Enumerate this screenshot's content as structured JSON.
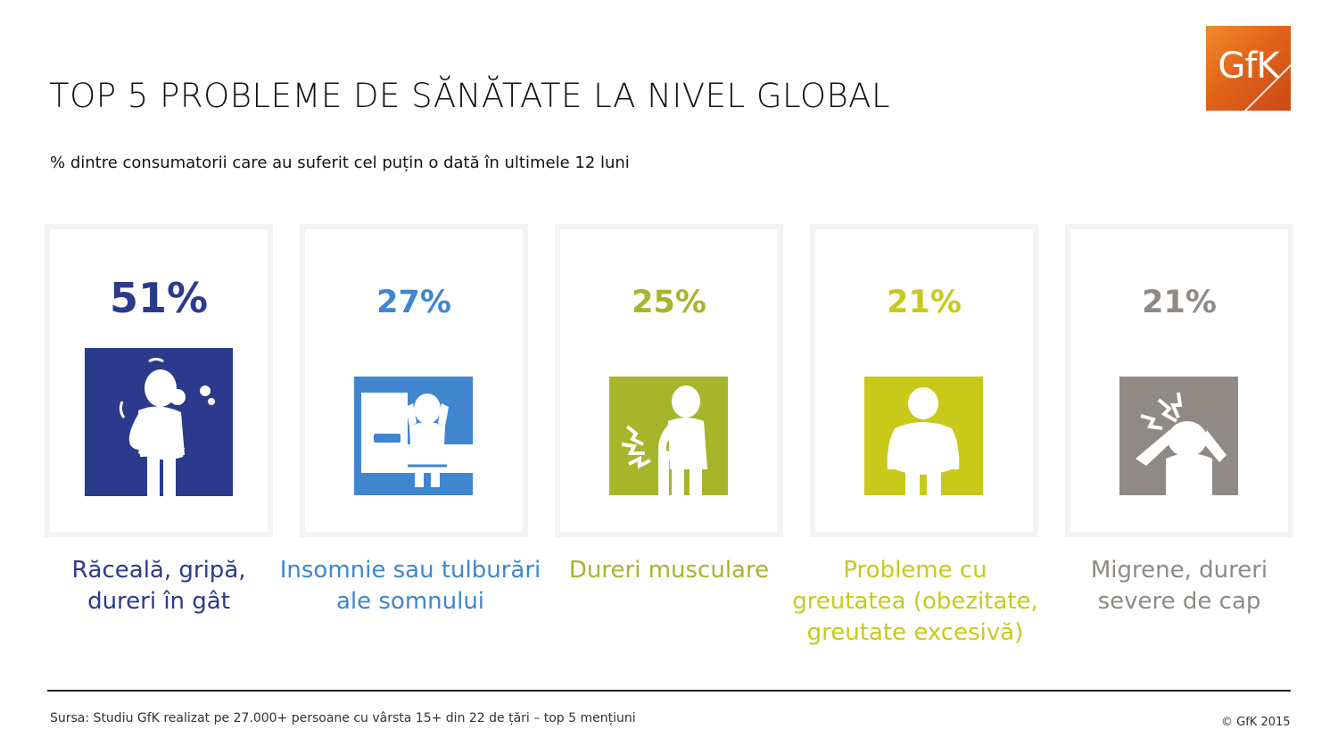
{
  "header": {
    "title": "TOP 5 PROBLEME DE SĂNĂTATE LA NIVEL GLOBAL",
    "subtitle": "% dintre consumatorii care au suferit cel puțin o dată în ultimele 12 luni",
    "logo_text": "GfK"
  },
  "items": [
    {
      "percent": "51%",
      "value": 51,
      "label_lines": [
        "Răceală, gripă,",
        "dureri în gât"
      ],
      "color": "#2b3a8c",
      "icon": "sneezing-person-icon"
    },
    {
      "percent": "27%",
      "value": 27,
      "label_lines": [
        "Insomnie sau tulburări",
        "ale somnului"
      ],
      "color": "#3f86cf",
      "icon": "sleepless-person-icon"
    },
    {
      "percent": "25%",
      "value": 25,
      "label_lines": [
        "Dureri musculare",
        ""
      ],
      "color": "#a7b52a",
      "icon": "muscle-pain-icon"
    },
    {
      "percent": "21%",
      "value": 21,
      "label_lines": [
        "Probleme cu",
        "greutatea (obezitate,",
        "greutate excesivă)"
      ],
      "color": "#c9c91c",
      "icon": "overweight-person-icon"
    },
    {
      "percent": "21%",
      "value": 21,
      "label_lines": [
        "Migrene, dureri",
        "severe de cap"
      ],
      "color": "#8f8a85",
      "icon": "headache-person-icon"
    }
  ],
  "footer": {
    "source": "Sursa: Studiu GfK realizat pe 27.000+ persoane cu vârsta 15+ din 22 de țări – top 5 mențiuni",
    "copyright": "© GfK 2015"
  }
}
